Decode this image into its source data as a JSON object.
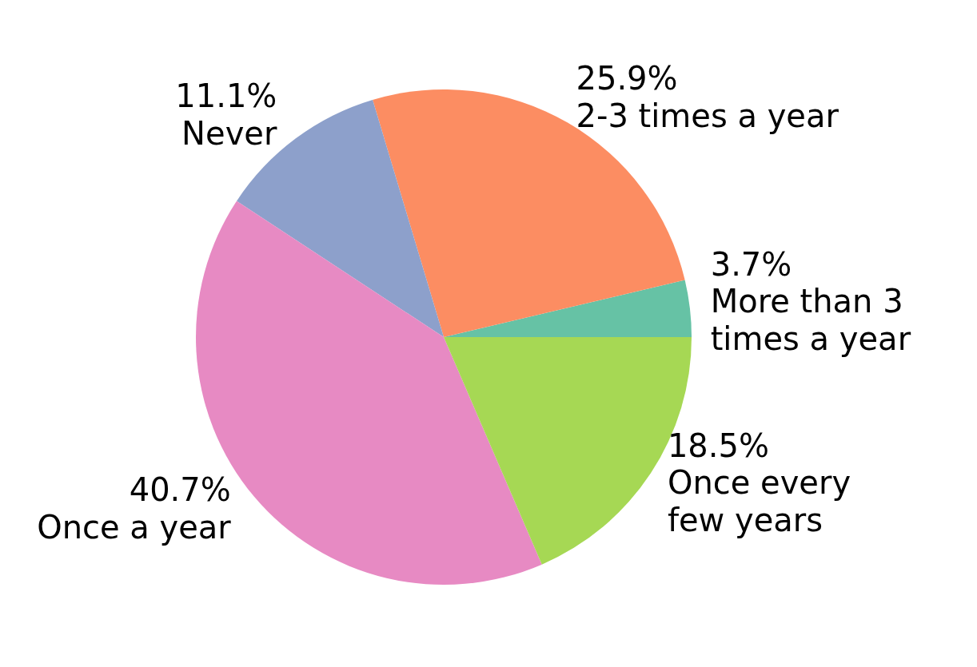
{
  "chart_data": {
    "type": "pie",
    "categories": [
      "More than 3\ntimes a year",
      "2-3 times a year",
      "Never",
      "Once a year",
      "Once every\nfew years"
    ],
    "values": [
      3.7,
      25.9,
      11.1,
      40.7,
      18.5
    ],
    "value_labels": [
      "3.7%",
      "25.9%",
      "11.1%",
      "40.7%",
      "18.5%"
    ],
    "colors": [
      "#66c2a5",
      "#fc8d62",
      "#8da0cb",
      "#e78ac3",
      "#a6d854"
    ],
    "legend": false
  }
}
